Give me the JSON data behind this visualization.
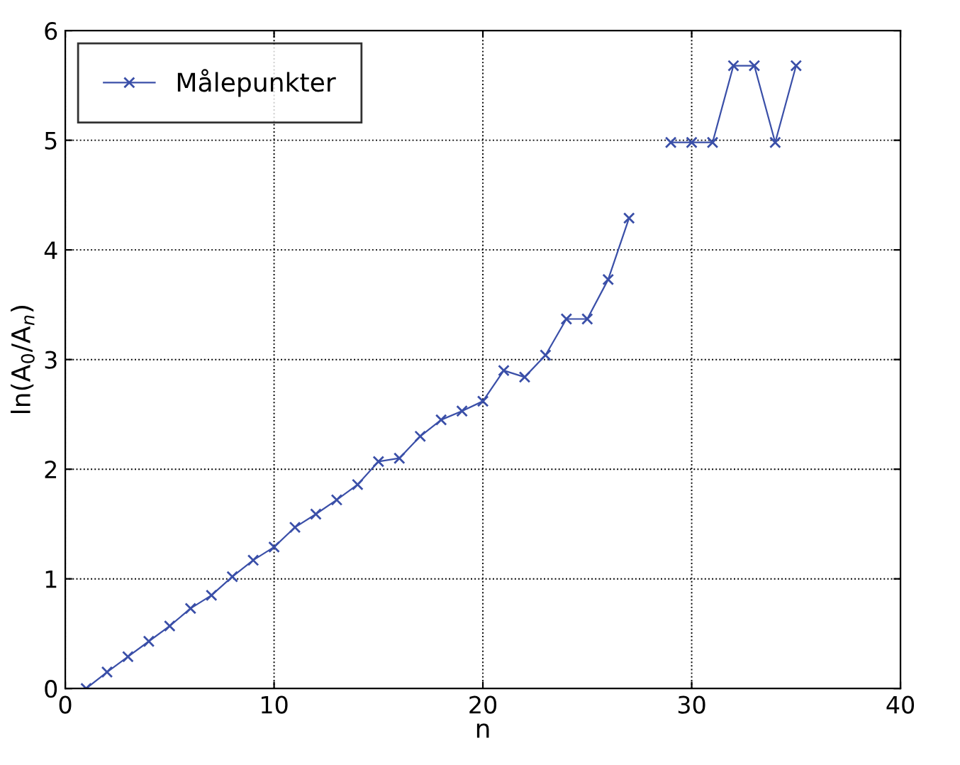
{
  "chart_data": {
    "type": "line",
    "xlabel": "n",
    "ylabel": "ln(A$_{0}$/A$_{n}$)",
    "x": [
      1,
      2,
      3,
      4,
      5,
      6,
      7,
      8,
      9,
      10,
      11,
      12,
      13,
      14,
      15,
      16,
      17,
      18,
      19,
      20,
      21,
      22,
      23,
      24,
      25,
      26,
      27,
      28,
      29,
      30,
      31,
      32,
      33,
      34,
      35
    ],
    "series": [
      {
        "name": "Målepunkter",
        "color": "#3a4fa8",
        "values": [
          0,
          0.15,
          0.29,
          0.43,
          0.57,
          0.73,
          0.85,
          1.02,
          1.17,
          1.29,
          1.47,
          1.59,
          1.72,
          1.86,
          2.07,
          2.1,
          2.3,
          2.45,
          2.53,
          2.62,
          2.9,
          2.84,
          3.04,
          3.37,
          3.37,
          3.73,
          4.29,
          null,
          4.98,
          4.98,
          4.98,
          5.68,
          5.68,
          4.98,
          5.68
        ]
      }
    ],
    "xlim": [
      0,
      40
    ],
    "xticks": [
      0,
      10,
      20,
      30,
      40
    ],
    "ylim": [
      0,
      6
    ],
    "yticks": [
      0,
      1,
      2,
      3,
      4,
      5,
      6
    ],
    "grid": true,
    "legend": "top left",
    "marker": "cross",
    "line_style": "solid"
  }
}
